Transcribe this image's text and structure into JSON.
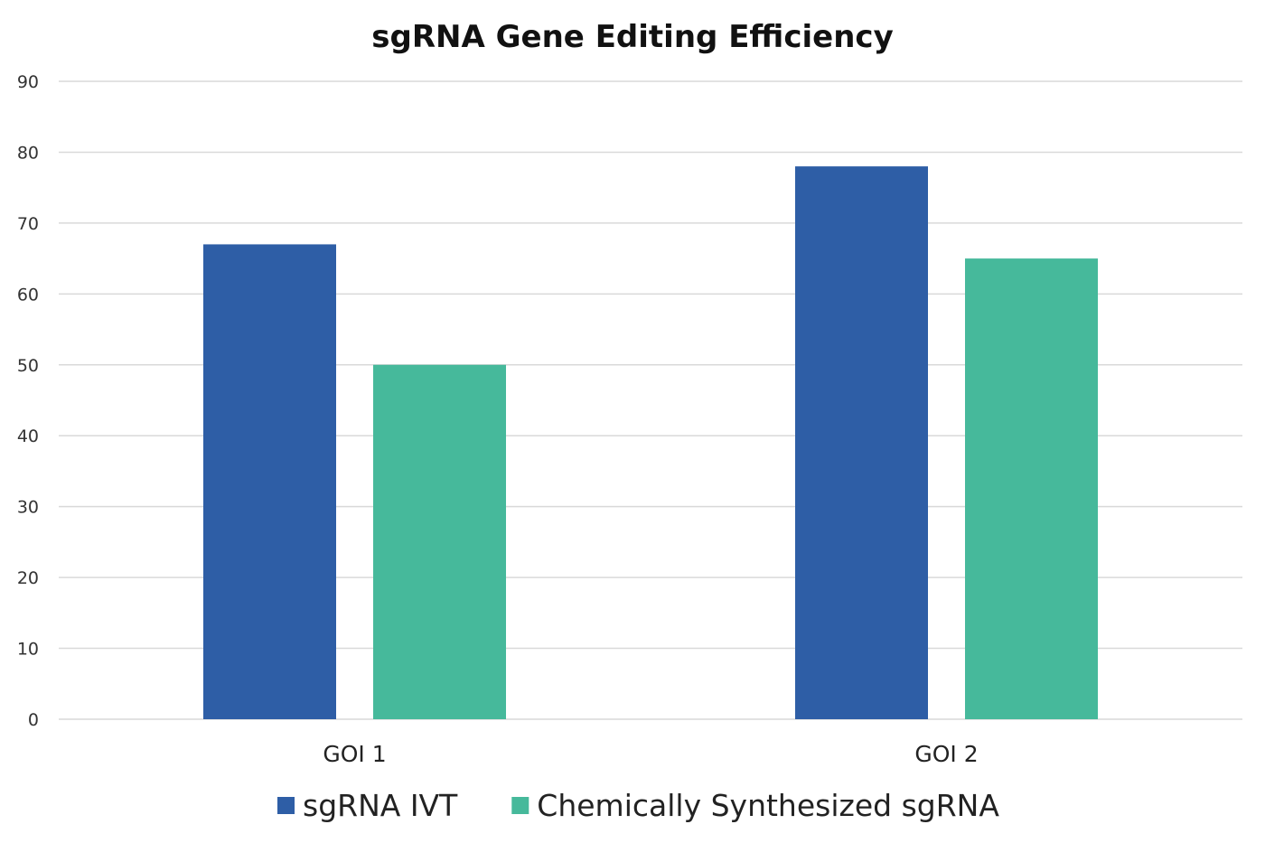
{
  "chart_data": {
    "type": "bar",
    "title": "sgRNA Gene Editing Efficiency",
    "xlabel": "",
    "ylabel": "",
    "categories": [
      "GOI 1",
      "GOI 2"
    ],
    "series": [
      {
        "name": "sgRNA IVT",
        "values": [
          67,
          78
        ],
        "color": "#2e5ea6"
      },
      {
        "name": "Chemically Synthesized sgRNA",
        "values": [
          50,
          65
        ],
        "color": "#46b99b"
      }
    ],
    "ylim": [
      0,
      90
    ],
    "yticks": [
      0,
      10,
      20,
      30,
      40,
      50,
      60,
      70,
      80,
      90
    ],
    "grid": true,
    "legend": "bottom"
  }
}
